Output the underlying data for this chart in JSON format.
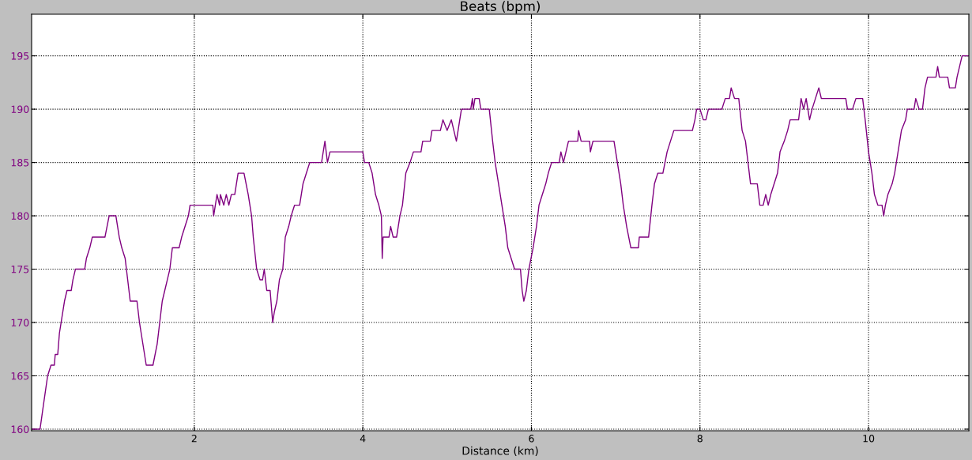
{
  "chart_data": {
    "type": "line",
    "title": "Beats (bpm)",
    "xlabel": "Distance (km)",
    "xlim": [
      0.07,
      11.19
    ],
    "ylim": [
      159.85,
      198.9
    ],
    "xticks": [
      2,
      4,
      6,
      8,
      10
    ],
    "yticks": [
      160,
      165,
      170,
      175,
      180,
      185,
      190,
      195
    ],
    "grid": true,
    "marker": "none",
    "line_style": "solid",
    "series": [
      {
        "color": "#800080",
        "x": [
          0.07,
          0.17,
          0.2,
          0.26,
          0.3,
          0.34,
          0.35,
          0.38,
          0.4,
          0.42,
          0.44,
          0.46,
          0.49,
          0.54,
          0.56,
          0.59,
          0.7,
          0.72,
          0.76,
          0.79,
          0.94,
          0.99,
          1.07,
          1.11,
          1.14,
          1.18,
          1.21,
          1.24,
          1.32,
          1.35,
          1.37,
          1.39,
          1.43,
          1.51,
          1.56,
          1.59,
          1.62,
          1.65,
          1.68,
          1.71,
          1.74,
          1.82,
          1.85,
          1.89,
          1.93,
          1.95,
          2.22,
          2.23,
          2.27,
          2.3,
          2.31,
          2.35,
          2.38,
          2.41,
          2.44,
          2.48,
          2.52,
          2.59,
          2.64,
          2.68,
          2.7,
          2.74,
          2.78,
          2.81,
          2.83,
          2.86,
          2.9,
          2.93,
          2.95,
          2.98,
          3.01,
          3.05,
          3.08,
          3.12,
          3.15,
          3.19,
          3.25,
          3.29,
          3.33,
          3.37,
          3.51,
          3.55,
          3.58,
          3.61,
          4.0,
          4.02,
          4.07,
          4.11,
          4.15,
          4.19,
          4.22,
          4.23,
          4.24,
          4.31,
          4.33,
          4.36,
          4.4,
          4.44,
          4.47,
          4.51,
          4.56,
          4.6,
          4.69,
          4.71,
          4.8,
          4.82,
          4.92,
          4.95,
          5.0,
          5.05,
          5.08,
          5.11,
          5.13,
          5.17,
          5.28,
          5.3,
          5.31,
          5.33,
          5.38,
          5.4,
          5.5,
          5.54,
          5.57,
          5.61,
          5.65,
          5.69,
          5.72,
          5.76,
          5.8,
          5.87,
          5.89,
          5.91,
          5.94,
          5.97,
          6.02,
          6.06,
          6.09,
          6.13,
          6.17,
          6.2,
          6.24,
          6.33,
          6.35,
          6.38,
          6.41,
          6.44,
          6.55,
          6.56,
          6.59,
          6.69,
          6.7,
          6.73,
          6.98,
          7.02,
          7.06,
          7.09,
          7.13,
          7.18,
          7.27,
          7.28,
          7.39,
          7.43,
          7.46,
          7.5,
          7.56,
          7.61,
          7.65,
          7.69,
          7.91,
          7.94,
          7.96,
          8.0,
          8.04,
          8.07,
          8.1,
          8.26,
          8.3,
          8.35,
          8.37,
          8.41,
          8.46,
          8.5,
          8.54,
          8.57,
          8.6,
          8.68,
          8.71,
          8.75,
          8.78,
          8.81,
          8.84,
          8.88,
          8.92,
          8.95,
          9.0,
          9.04,
          9.07,
          9.17,
          9.2,
          9.23,
          9.26,
          9.3,
          9.33,
          9.37,
          9.41,
          9.44,
          9.73,
          9.75,
          9.81,
          9.85,
          9.93,
          9.96,
          10.0,
          10.04,
          10.07,
          10.11,
          10.16,
          10.18,
          10.2,
          10.23,
          10.28,
          10.31,
          10.35,
          10.39,
          10.44,
          10.46,
          10.54,
          10.56,
          10.6,
          10.64,
          10.67,
          10.7,
          10.8,
          10.82,
          10.84,
          10.94,
          10.96,
          11.03,
          11.05,
          11.08,
          11.11,
          11.19
        ],
        "values": [
          160,
          160,
          161.7,
          165,
          166,
          166,
          167,
          167,
          169,
          170,
          171,
          172,
          173,
          173,
          174,
          175,
          175,
          176,
          177,
          178,
          178,
          180,
          180,
          178,
          177,
          176,
          174,
          172,
          172,
          170,
          169,
          168,
          166,
          166,
          168,
          170,
          172,
          173,
          174,
          175,
          177,
          177,
          178,
          179,
          180,
          181,
          181,
          180,
          182,
          181,
          182,
          181,
          182,
          181,
          182,
          182,
          184,
          184,
          182,
          180,
          178,
          175,
          174,
          174,
          175,
          173,
          173,
          170,
          171,
          172,
          174,
          175,
          178,
          179,
          180,
          181,
          181,
          183,
          184,
          185,
          185,
          187,
          185,
          186,
          186,
          185,
          185,
          184,
          182,
          181,
          180,
          176,
          178,
          178,
          179,
          178,
          178,
          180,
          181,
          184,
          185,
          186,
          186,
          187,
          187,
          188,
          188,
          189,
          188,
          189,
          188,
          187,
          188,
          190,
          190,
          191,
          190,
          191,
          191,
          190,
          190,
          187,
          185,
          183,
          181,
          179,
          177,
          176,
          175,
          175,
          173,
          172,
          173,
          175,
          177,
          179,
          181,
          182,
          183,
          184,
          185,
          185,
          186,
          185,
          186,
          187,
          187,
          188,
          187,
          187,
          186,
          187,
          187,
          185,
          183,
          181,
          179,
          177,
          177,
          178,
          178,
          181,
          183,
          184,
          184,
          186,
          187,
          188,
          188,
          189,
          190,
          190,
          189,
          189,
          190,
          190,
          191,
          191,
          192,
          191,
          191,
          188,
          187,
          185,
          183,
          183,
          181,
          181,
          182,
          181,
          182,
          183,
          184,
          186,
          187,
          188,
          189,
          189,
          191,
          190,
          191,
          189,
          190,
          191,
          192,
          191,
          191,
          190,
          190,
          191,
          191,
          189,
          186,
          184,
          182,
          181,
          181,
          180,
          181,
          182,
          183,
          184,
          186,
          188,
          189,
          190,
          190,
          191,
          190,
          190,
          192,
          193,
          193,
          194,
          193,
          193,
          192,
          192,
          193,
          194,
          195,
          195
        ]
      }
    ]
  }
}
